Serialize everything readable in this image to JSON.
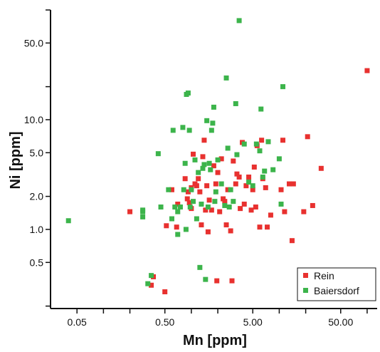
{
  "chart_data": {
    "type": "scatter",
    "title": "",
    "xlabel": "Mn [ppm]",
    "ylabel": "Ni [ppm]",
    "xscale": "log",
    "yscale": "log",
    "xlim": [
      0.025,
      130
    ],
    "ylim": [
      0.19,
      100
    ],
    "x_ticks": [
      0.05,
      0.1,
      0.2,
      0.5,
      1,
      2,
      5,
      10,
      20,
      50,
      100
    ],
    "x_tick_labels": [
      "0.05",
      "0.50",
      "5.00",
      "50.00"
    ],
    "x_tick_label_values": [
      0.05,
      0.5,
      5,
      50
    ],
    "y_ticks": [
      0.2,
      0.5,
      1,
      2,
      5,
      10,
      20,
      50,
      100
    ],
    "y_tick_labels": [
      "0.5",
      "1.0",
      "2.0",
      "5.0",
      "10.0",
      "50.0"
    ],
    "y_tick_label_values": [
      0.5,
      1,
      2,
      5,
      10,
      50
    ],
    "grid": false,
    "legend_position": "bottom-right",
    "series": [
      {
        "name": "Rein",
        "color": "#e8312f",
        "points": [
          [
            0.2,
            1.45
          ],
          [
            0.35,
            0.31
          ],
          [
            0.37,
            0.37
          ],
          [
            0.5,
            0.27
          ],
          [
            0.52,
            1.08
          ],
          [
            0.6,
            2.3
          ],
          [
            0.68,
            1.05
          ],
          [
            0.7,
            1.7
          ],
          [
            0.85,
            2.9
          ],
          [
            0.9,
            1.9
          ],
          [
            0.92,
            2.2
          ],
          [
            0.95,
            1.75
          ],
          [
            1.0,
            2.4
          ],
          [
            1.0,
            1.55
          ],
          [
            1.05,
            4.85
          ],
          [
            1.1,
            2.6
          ],
          [
            1.15,
            2.5
          ],
          [
            1.2,
            2.9
          ],
          [
            1.25,
            2.2
          ],
          [
            1.3,
            1.1
          ],
          [
            1.35,
            4.6
          ],
          [
            1.4,
            6.5
          ],
          [
            1.45,
            1.5
          ],
          [
            1.5,
            2.5
          ],
          [
            1.55,
            0.95
          ],
          [
            1.6,
            1.85
          ],
          [
            1.7,
            1.5
          ],
          [
            1.8,
            3.8
          ],
          [
            1.9,
            2.6
          ],
          [
            1.95,
            0.34
          ],
          [
            2.0,
            3.3
          ],
          [
            2.1,
            1.45
          ],
          [
            2.2,
            4.4
          ],
          [
            2.3,
            1.9
          ],
          [
            2.4,
            1.8
          ],
          [
            2.5,
            1.1
          ],
          [
            2.6,
            2.3
          ],
          [
            2.8,
            0.97
          ],
          [
            2.9,
            0.34
          ],
          [
            3.0,
            4.2
          ],
          [
            3.2,
            2.6
          ],
          [
            3.3,
            3.2
          ],
          [
            3.5,
            3.0
          ],
          [
            3.6,
            1.55
          ],
          [
            3.8,
            6.2
          ],
          [
            4.0,
            1.7
          ],
          [
            4.2,
            2.5
          ],
          [
            4.5,
            3.0
          ],
          [
            4.8,
            1.5
          ],
          [
            5.0,
            2.3
          ],
          [
            5.2,
            3.7
          ],
          [
            5.4,
            1.6
          ],
          [
            5.6,
            5.8
          ],
          [
            6.0,
            1.05
          ],
          [
            6.3,
            6.5
          ],
          [
            6.5,
            2.9
          ],
          [
            7.0,
            2.4
          ],
          [
            7.3,
            1.05
          ],
          [
            8.0,
            1.35
          ],
          [
            10.5,
            2.3
          ],
          [
            11.0,
            6.5
          ],
          [
            11.5,
            1.45
          ],
          [
            13.0,
            2.6
          ],
          [
            14.0,
            0.79
          ],
          [
            14.5,
            2.6
          ],
          [
            19.0,
            1.45
          ],
          [
            21.0,
            7.0
          ],
          [
            24.0,
            1.65
          ],
          [
            30.0,
            3.6
          ],
          [
            100.0,
            28.0
          ]
        ]
      },
      {
        "name": "Baiersdorf",
        "color": "#3cb44b",
        "points": [
          [
            0.04,
            1.2
          ],
          [
            0.28,
            1.3
          ],
          [
            0.28,
            1.45
          ],
          [
            0.28,
            1.5
          ],
          [
            0.32,
            0.32
          ],
          [
            0.35,
            0.38
          ],
          [
            0.42,
            4.9
          ],
          [
            0.45,
            1.6
          ],
          [
            0.55,
            2.3
          ],
          [
            0.6,
            1.25
          ],
          [
            0.62,
            8.0
          ],
          [
            0.65,
            1.6
          ],
          [
            0.7,
            1.45
          ],
          [
            0.7,
            0.9
          ],
          [
            0.75,
            1.6
          ],
          [
            0.8,
            8.5
          ],
          [
            0.82,
            2.3
          ],
          [
            0.85,
            4.0
          ],
          [
            0.87,
            1.0
          ],
          [
            0.88,
            17.0
          ],
          [
            0.92,
            17.5
          ],
          [
            0.95,
            8.0
          ],
          [
            0.97,
            1.6
          ],
          [
            1.0,
            2.3
          ],
          [
            1.05,
            1.8
          ],
          [
            1.1,
            4.3
          ],
          [
            1.15,
            1.25
          ],
          [
            1.2,
            3.3
          ],
          [
            1.25,
            0.45
          ],
          [
            1.3,
            1.7
          ],
          [
            1.35,
            3.6
          ],
          [
            1.4,
            3.9
          ],
          [
            1.45,
            0.35
          ],
          [
            1.5,
            9.8
          ],
          [
            1.55,
            1.6
          ],
          [
            1.6,
            4.0
          ],
          [
            1.65,
            3.5
          ],
          [
            1.7,
            8.0
          ],
          [
            1.75,
            9.3
          ],
          [
            1.8,
            13.0
          ],
          [
            1.85,
            1.8
          ],
          [
            1.9,
            2.2
          ],
          [
            2.0,
            4.3
          ],
          [
            2.2,
            2.6
          ],
          [
            2.4,
            1.65
          ],
          [
            2.5,
            24.0
          ],
          [
            2.6,
            5.5
          ],
          [
            2.7,
            1.6
          ],
          [
            2.8,
            2.3
          ],
          [
            3.0,
            1.8
          ],
          [
            3.2,
            14.0
          ],
          [
            3.3,
            4.8
          ],
          [
            3.5,
            80.0
          ],
          [
            4.0,
            6.0
          ],
          [
            4.5,
            2.7
          ],
          [
            5.0,
            2.5
          ],
          [
            5.5,
            6.0
          ],
          [
            6.0,
            5.2
          ],
          [
            6.2,
            12.5
          ],
          [
            6.5,
            3.0
          ],
          [
            6.8,
            3.4
          ],
          [
            7.5,
            6.3
          ],
          [
            8.5,
            3.5
          ],
          [
            10.0,
            4.4
          ],
          [
            10.5,
            1.7
          ],
          [
            11.0,
            20.0
          ]
        ]
      }
    ]
  }
}
